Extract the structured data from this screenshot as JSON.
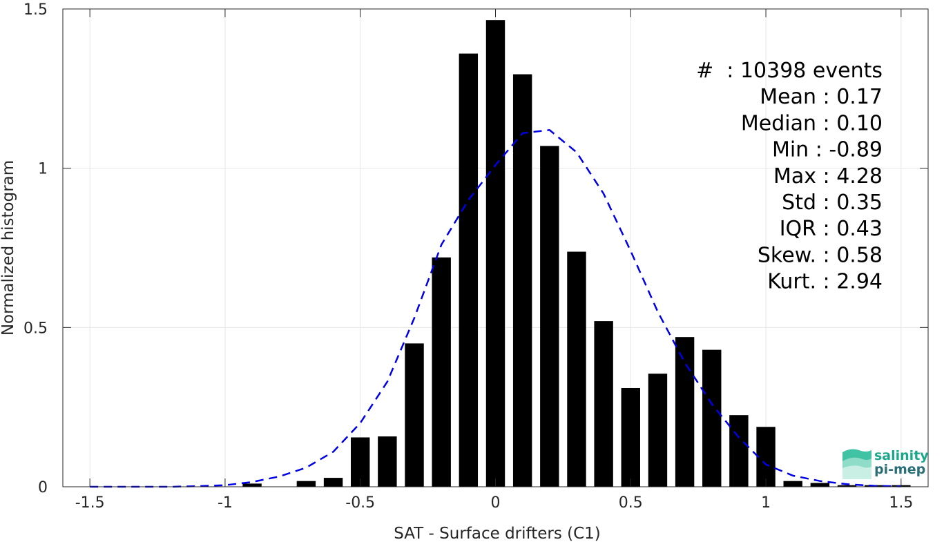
{
  "colors": {
    "bar": "#000000",
    "fit_line": "#0000e6",
    "grid": "#e6e6e6",
    "axis": "#262626",
    "logo_teal": "#1aa88c"
  },
  "chart_data": {
    "type": "bar",
    "xlabel": "SAT - Surface drifters (C1)",
    "ylabel": "Normalized histogram",
    "xlim": [
      -1.6,
      1.6
    ],
    "ylim": [
      0,
      1.5
    ],
    "grid": true,
    "x_ticks": [
      -1.5,
      -1,
      -0.5,
      0,
      0.5,
      1,
      1.5
    ],
    "x_tick_labels": [
      "-1.5",
      "-1",
      "-0.5",
      "0",
      "0.5",
      "1",
      "1.5"
    ],
    "y_ticks": [
      0,
      0.5,
      1,
      1.5
    ],
    "y_tick_labels": [
      "0",
      "0.5",
      "1",
      "1.5"
    ],
    "bar_width": 0.07,
    "bars": {
      "x": [
        -1.5,
        -1.4,
        -1.3,
        -1.2,
        -1.1,
        -1.0,
        -0.9,
        -0.8,
        -0.7,
        -0.6,
        -0.5,
        -0.4,
        -0.3,
        -0.2,
        -0.1,
        0.0,
        0.1,
        0.2,
        0.3,
        0.4,
        0.5,
        0.6,
        0.7,
        0.8,
        0.9,
        1.0,
        1.1,
        1.2,
        1.3,
        1.4,
        1.5
      ],
      "values": [
        0,
        0,
        0,
        0,
        0,
        0,
        0.01,
        0,
        0.018,
        0.028,
        0.155,
        0.158,
        0.45,
        0.72,
        1.36,
        1.465,
        1.295,
        1.07,
        0.738,
        0.52,
        0.31,
        0.355,
        0.47,
        0.43,
        0.225,
        0.188,
        0.018,
        0.012,
        0.005,
        0.005,
        0.005
      ]
    },
    "fit_curve": {
      "style": "dashed",
      "x": [
        -1.5,
        -1.4,
        -1.3,
        -1.2,
        -1.1,
        -1.0,
        -0.9,
        -0.8,
        -0.7,
        -0.6,
        -0.5,
        -0.4,
        -0.3,
        -0.2,
        -0.1,
        0.0,
        0.1,
        0.2,
        0.3,
        0.4,
        0.5,
        0.6,
        0.7,
        0.8,
        0.9,
        1.0,
        1.1,
        1.2,
        1.3,
        1.4,
        1.5
      ],
      "y": [
        0.0,
        0.0,
        0.0,
        0.0,
        0.002,
        0.005,
        0.015,
        0.032,
        0.06,
        0.11,
        0.2,
        0.33,
        0.53,
        0.76,
        0.9,
        1.01,
        1.11,
        1.12,
        1.05,
        0.92,
        0.74,
        0.55,
        0.39,
        0.26,
        0.155,
        0.07,
        0.035,
        0.018,
        0.008,
        0.003,
        0.001
      ]
    },
    "annotations": [
      {
        "text": "#  : 10398 events",
        "anchor": "end"
      },
      {
        "text": "Mean : 0.17",
        "anchor": "end"
      },
      {
        "text": "Median : 0.10",
        "anchor": "end"
      },
      {
        "text": "Min : -0.89",
        "anchor": "end"
      },
      {
        "text": "Max : 4.28",
        "anchor": "end"
      },
      {
        "text": "Std : 0.35",
        "anchor": "end"
      },
      {
        "text": "IQR : 0.43",
        "anchor": "end"
      },
      {
        "text": "Skew. : 0.58",
        "anchor": "end"
      },
      {
        "text": "Kurt. : 2.94",
        "anchor": "end"
      }
    ]
  },
  "logo": {
    "line1": "salinity",
    "line2": "pi-mep"
  }
}
